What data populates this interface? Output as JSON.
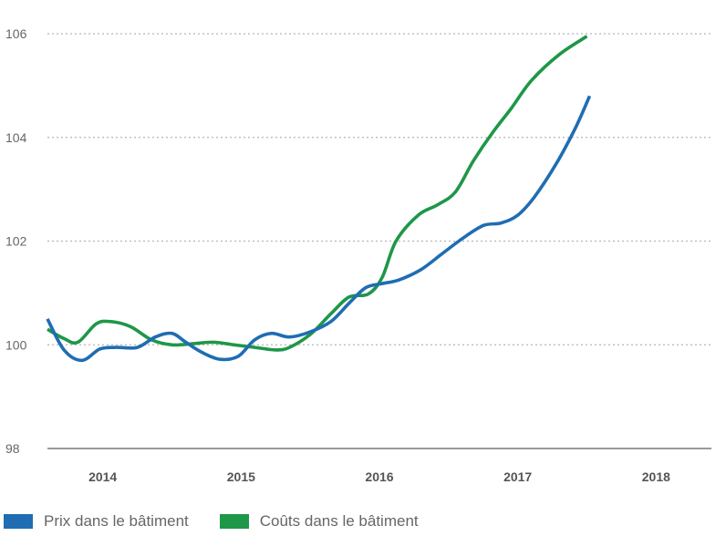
{
  "chart_data": {
    "type": "line",
    "title": "",
    "xlabel": "",
    "ylabel": "",
    "ylim": [
      98,
      106
    ],
    "xlim": [
      2013.6,
      2018.4
    ],
    "yticks": [
      "98",
      "100",
      "102",
      "104",
      "106"
    ],
    "xticks": [
      "2014",
      "2015",
      "2016",
      "2017",
      "2018"
    ],
    "grid": "horizontal-dotted",
    "legend_position": "bottom-left",
    "series": [
      {
        "name": "Prix dans le bâtiment",
        "color": "#1f6db3",
        "points": [
          [
            2013.6,
            100.5
          ],
          [
            2013.72,
            99.9
          ],
          [
            2013.85,
            99.7
          ],
          [
            2013.98,
            99.92
          ],
          [
            2014.1,
            99.95
          ],
          [
            2014.25,
            99.95
          ],
          [
            2014.38,
            100.15
          ],
          [
            2014.5,
            100.22
          ],
          [
            2014.6,
            100.05
          ],
          [
            2014.72,
            99.85
          ],
          [
            2014.85,
            99.72
          ],
          [
            2014.98,
            99.78
          ],
          [
            2015.1,
            100.1
          ],
          [
            2015.22,
            100.22
          ],
          [
            2015.35,
            100.15
          ],
          [
            2015.5,
            100.25
          ],
          [
            2015.65,
            100.45
          ],
          [
            2015.78,
            100.8
          ],
          [
            2015.9,
            101.1
          ],
          [
            2016.02,
            101.18
          ],
          [
            2016.14,
            101.25
          ],
          [
            2016.3,
            101.45
          ],
          [
            2016.45,
            101.75
          ],
          [
            2016.6,
            102.05
          ],
          [
            2016.75,
            102.3
          ],
          [
            2016.88,
            102.35
          ],
          [
            2017.0,
            102.5
          ],
          [
            2017.12,
            102.85
          ],
          [
            2017.28,
            103.5
          ],
          [
            2017.42,
            104.2
          ],
          [
            2017.52,
            104.8
          ]
        ]
      },
      {
        "name": "Coûts dans le bâtiment",
        "color": "#1e9748",
        "points": [
          [
            2013.6,
            100.3
          ],
          [
            2013.72,
            100.12
          ],
          [
            2013.82,
            100.05
          ],
          [
            2013.95,
            100.4
          ],
          [
            2014.05,
            100.45
          ],
          [
            2014.2,
            100.35
          ],
          [
            2014.35,
            100.1
          ],
          [
            2014.5,
            100.0
          ],
          [
            2014.65,
            100.02
          ],
          [
            2014.8,
            100.05
          ],
          [
            2014.95,
            100.0
          ],
          [
            2015.1,
            99.95
          ],
          [
            2015.25,
            99.9
          ],
          [
            2015.35,
            99.95
          ],
          [
            2015.5,
            100.2
          ],
          [
            2015.65,
            100.6
          ],
          [
            2015.78,
            100.92
          ],
          [
            2015.92,
            100.98
          ],
          [
            2016.02,
            101.3
          ],
          [
            2016.12,
            102.0
          ],
          [
            2016.28,
            102.5
          ],
          [
            2016.42,
            102.7
          ],
          [
            2016.55,
            102.95
          ],
          [
            2016.68,
            103.55
          ],
          [
            2016.82,
            104.1
          ],
          [
            2016.95,
            104.55
          ],
          [
            2017.1,
            105.1
          ],
          [
            2017.3,
            105.6
          ],
          [
            2017.5,
            105.95
          ]
        ]
      }
    ]
  }
}
